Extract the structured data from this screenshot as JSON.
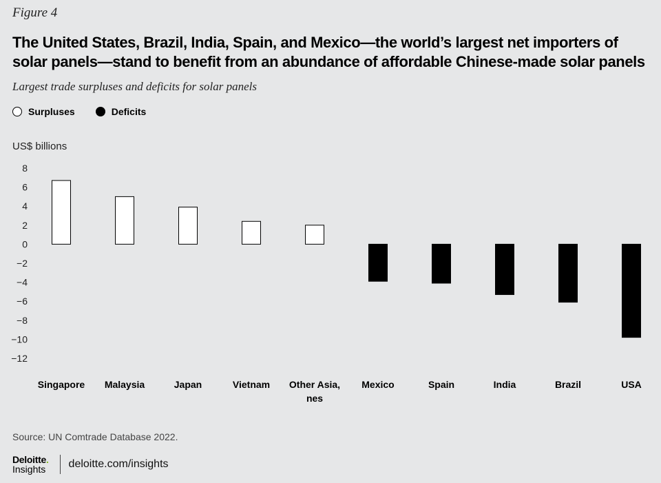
{
  "figure_label": "Figure 4",
  "chart_data": {
    "type": "bar",
    "title": "The United States, Brazil, India, Spain, and Mexico—the world’s largest net importers of solar panels—stand to benefit from an abundance of affordable Chinese-made solar panels",
    "subtitle": "Largest trade surpluses and deficits for solar panels",
    "ylabel": "US$ billions",
    "xlabel": "",
    "ylim": [
      -12,
      8
    ],
    "yticks": [
      8,
      6,
      4,
      2,
      0,
      -2,
      -4,
      -6,
      -8,
      -10,
      -12
    ],
    "ytick_labels": [
      "8",
      "6",
      "4",
      "2",
      "0",
      "−2",
      "−4",
      "−6",
      "−8",
      "−10",
      "−12"
    ],
    "categories": [
      [
        "Singapore"
      ],
      [
        "Malaysia"
      ],
      [
        "Japan"
      ],
      [
        "Vietnam"
      ],
      [
        "Other Asia,",
        "nes"
      ],
      [
        "Mexico"
      ],
      [
        "Spain"
      ],
      [
        "India"
      ],
      [
        "Brazil"
      ],
      [
        "USA"
      ]
    ],
    "values": [
      6.7,
      5.0,
      3.9,
      2.4,
      2.0,
      -3.9,
      -4.1,
      -5.3,
      -6.1,
      -9.8
    ],
    "legend": {
      "placement": "top-left",
      "entries": [
        {
          "label": "Surpluses",
          "fill": "#ffffff"
        },
        {
          "label": "Deficits",
          "fill": "#000000"
        }
      ]
    },
    "grid": false
  },
  "source": "Source: UN Comtrade Database 2022.",
  "footer": {
    "logo_main": "Deloitte",
    "logo_dot": ".",
    "logo_sub": "Insights",
    "site": "deloitte.com/insights"
  },
  "colors": {
    "background": "#e6e7e8",
    "surplus_fill": "#ffffff",
    "deficit_fill": "#000000",
    "logo_accent": "#86bc25"
  }
}
